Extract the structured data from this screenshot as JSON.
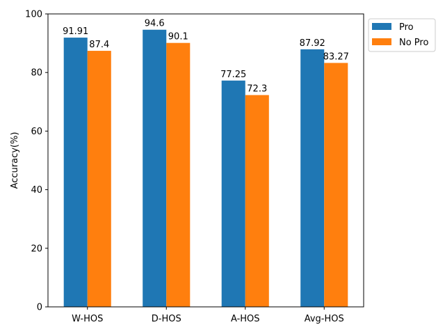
{
  "chart_data": {
    "type": "bar",
    "categories": [
      "W-HOS",
      "D-HOS",
      "A-HOS",
      "Avg-HOS"
    ],
    "series": [
      {
        "name": "Pro",
        "values": [
          91.91,
          94.6,
          77.25,
          87.92
        ],
        "labels": [
          "91.91",
          "94.6",
          "77.25",
          "87.92"
        ],
        "color": "#1f77b4"
      },
      {
        "name": "No Pro",
        "values": [
          87.4,
          90.1,
          72.3,
          83.27
        ],
        "labels": [
          "87.4",
          "90.1",
          "72.3",
          "83.27"
        ],
        "color": "#ff7f0e"
      }
    ],
    "xlabel": "",
    "ylabel": "Accuracy(%)",
    "ylim": [
      0,
      100
    ],
    "yticks": [
      0,
      20,
      40,
      60,
      80,
      100
    ],
    "grid": false,
    "legend_position": "outside-top-right"
  }
}
